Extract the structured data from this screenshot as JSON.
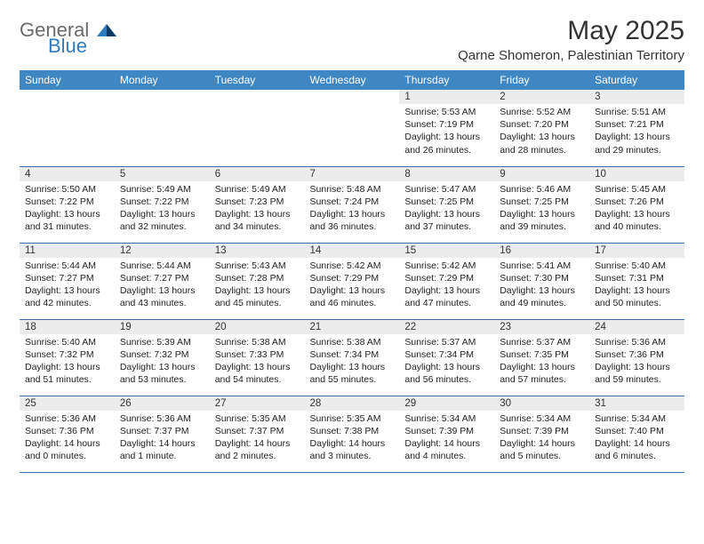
{
  "brand": {
    "word1": "General",
    "word2": "Blue"
  },
  "title": "May 2025",
  "location": "Qarne Shomeron, Palestinian Territory",
  "header_bg": "#3e87c3",
  "header_fg": "#ffffff",
  "daynum_bg": "#ececec",
  "row_border": "#3e6fa3",
  "day_names": [
    "Sunday",
    "Monday",
    "Tuesday",
    "Wednesday",
    "Thursday",
    "Friday",
    "Saturday"
  ],
  "weeks": [
    [
      {
        "n": "",
        "sr": "",
        "ss": "",
        "dl": ""
      },
      {
        "n": "",
        "sr": "",
        "ss": "",
        "dl": ""
      },
      {
        "n": "",
        "sr": "",
        "ss": "",
        "dl": ""
      },
      {
        "n": "",
        "sr": "",
        "ss": "",
        "dl": ""
      },
      {
        "n": "1",
        "sr": "Sunrise: 5:53 AM",
        "ss": "Sunset: 7:19 PM",
        "dl": "Daylight: 13 hours and 26 minutes."
      },
      {
        "n": "2",
        "sr": "Sunrise: 5:52 AM",
        "ss": "Sunset: 7:20 PM",
        "dl": "Daylight: 13 hours and 28 minutes."
      },
      {
        "n": "3",
        "sr": "Sunrise: 5:51 AM",
        "ss": "Sunset: 7:21 PM",
        "dl": "Daylight: 13 hours and 29 minutes."
      }
    ],
    [
      {
        "n": "4",
        "sr": "Sunrise: 5:50 AM",
        "ss": "Sunset: 7:22 PM",
        "dl": "Daylight: 13 hours and 31 minutes."
      },
      {
        "n": "5",
        "sr": "Sunrise: 5:49 AM",
        "ss": "Sunset: 7:22 PM",
        "dl": "Daylight: 13 hours and 32 minutes."
      },
      {
        "n": "6",
        "sr": "Sunrise: 5:49 AM",
        "ss": "Sunset: 7:23 PM",
        "dl": "Daylight: 13 hours and 34 minutes."
      },
      {
        "n": "7",
        "sr": "Sunrise: 5:48 AM",
        "ss": "Sunset: 7:24 PM",
        "dl": "Daylight: 13 hours and 36 minutes."
      },
      {
        "n": "8",
        "sr": "Sunrise: 5:47 AM",
        "ss": "Sunset: 7:25 PM",
        "dl": "Daylight: 13 hours and 37 minutes."
      },
      {
        "n": "9",
        "sr": "Sunrise: 5:46 AM",
        "ss": "Sunset: 7:25 PM",
        "dl": "Daylight: 13 hours and 39 minutes."
      },
      {
        "n": "10",
        "sr": "Sunrise: 5:45 AM",
        "ss": "Sunset: 7:26 PM",
        "dl": "Daylight: 13 hours and 40 minutes."
      }
    ],
    [
      {
        "n": "11",
        "sr": "Sunrise: 5:44 AM",
        "ss": "Sunset: 7:27 PM",
        "dl": "Daylight: 13 hours and 42 minutes."
      },
      {
        "n": "12",
        "sr": "Sunrise: 5:44 AM",
        "ss": "Sunset: 7:27 PM",
        "dl": "Daylight: 13 hours and 43 minutes."
      },
      {
        "n": "13",
        "sr": "Sunrise: 5:43 AM",
        "ss": "Sunset: 7:28 PM",
        "dl": "Daylight: 13 hours and 45 minutes."
      },
      {
        "n": "14",
        "sr": "Sunrise: 5:42 AM",
        "ss": "Sunset: 7:29 PM",
        "dl": "Daylight: 13 hours and 46 minutes."
      },
      {
        "n": "15",
        "sr": "Sunrise: 5:42 AM",
        "ss": "Sunset: 7:29 PM",
        "dl": "Daylight: 13 hours and 47 minutes."
      },
      {
        "n": "16",
        "sr": "Sunrise: 5:41 AM",
        "ss": "Sunset: 7:30 PM",
        "dl": "Daylight: 13 hours and 49 minutes."
      },
      {
        "n": "17",
        "sr": "Sunrise: 5:40 AM",
        "ss": "Sunset: 7:31 PM",
        "dl": "Daylight: 13 hours and 50 minutes."
      }
    ],
    [
      {
        "n": "18",
        "sr": "Sunrise: 5:40 AM",
        "ss": "Sunset: 7:32 PM",
        "dl": "Daylight: 13 hours and 51 minutes."
      },
      {
        "n": "19",
        "sr": "Sunrise: 5:39 AM",
        "ss": "Sunset: 7:32 PM",
        "dl": "Daylight: 13 hours and 53 minutes."
      },
      {
        "n": "20",
        "sr": "Sunrise: 5:38 AM",
        "ss": "Sunset: 7:33 PM",
        "dl": "Daylight: 13 hours and 54 minutes."
      },
      {
        "n": "21",
        "sr": "Sunrise: 5:38 AM",
        "ss": "Sunset: 7:34 PM",
        "dl": "Daylight: 13 hours and 55 minutes."
      },
      {
        "n": "22",
        "sr": "Sunrise: 5:37 AM",
        "ss": "Sunset: 7:34 PM",
        "dl": "Daylight: 13 hours and 56 minutes."
      },
      {
        "n": "23",
        "sr": "Sunrise: 5:37 AM",
        "ss": "Sunset: 7:35 PM",
        "dl": "Daylight: 13 hours and 57 minutes."
      },
      {
        "n": "24",
        "sr": "Sunrise: 5:36 AM",
        "ss": "Sunset: 7:36 PM",
        "dl": "Daylight: 13 hours and 59 minutes."
      }
    ],
    [
      {
        "n": "25",
        "sr": "Sunrise: 5:36 AM",
        "ss": "Sunset: 7:36 PM",
        "dl": "Daylight: 14 hours and 0 minutes."
      },
      {
        "n": "26",
        "sr": "Sunrise: 5:36 AM",
        "ss": "Sunset: 7:37 PM",
        "dl": "Daylight: 14 hours and 1 minute."
      },
      {
        "n": "27",
        "sr": "Sunrise: 5:35 AM",
        "ss": "Sunset: 7:37 PM",
        "dl": "Daylight: 14 hours and 2 minutes."
      },
      {
        "n": "28",
        "sr": "Sunrise: 5:35 AM",
        "ss": "Sunset: 7:38 PM",
        "dl": "Daylight: 14 hours and 3 minutes."
      },
      {
        "n": "29",
        "sr": "Sunrise: 5:34 AM",
        "ss": "Sunset: 7:39 PM",
        "dl": "Daylight: 14 hours and 4 minutes."
      },
      {
        "n": "30",
        "sr": "Sunrise: 5:34 AM",
        "ss": "Sunset: 7:39 PM",
        "dl": "Daylight: 14 hours and 5 minutes."
      },
      {
        "n": "31",
        "sr": "Sunrise: 5:34 AM",
        "ss": "Sunset: 7:40 PM",
        "dl": "Daylight: 14 hours and 6 minutes."
      }
    ]
  ]
}
